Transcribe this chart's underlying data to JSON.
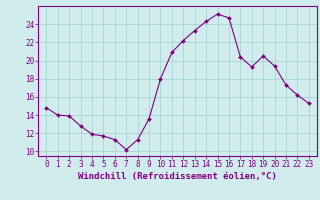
{
  "x": [
    0,
    1,
    2,
    3,
    4,
    5,
    6,
    7,
    8,
    9,
    10,
    11,
    12,
    13,
    14,
    15,
    16,
    17,
    18,
    19,
    20,
    21,
    22,
    23
  ],
  "y": [
    14.8,
    14.0,
    13.9,
    12.8,
    11.9,
    11.7,
    11.3,
    10.2,
    11.3,
    13.6,
    18.0,
    20.9,
    22.2,
    23.3,
    24.3,
    25.1,
    24.7,
    20.4,
    19.3,
    20.5,
    19.4,
    17.3,
    16.2,
    15.3
  ],
  "line_color": "#800080",
  "marker": "D",
  "marker_size": 2.0,
  "bg_color": "#d0ecec",
  "grid_color": "#a8d4d4",
  "xlabel": "Windchill (Refroidissement éolien,°C)",
  "xlabel_fontsize": 6.5,
  "tick_fontsize": 5.5,
  "ylim": [
    9.5,
    26.0
  ],
  "yticks": [
    10,
    12,
    14,
    16,
    18,
    20,
    22,
    24
  ],
  "spine_color": "#800080",
  "title": ""
}
